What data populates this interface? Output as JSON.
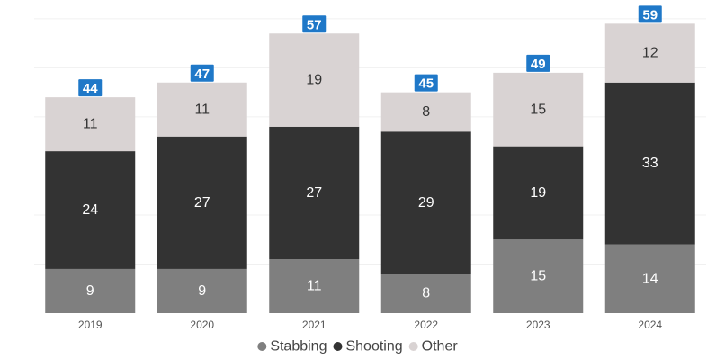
{
  "chart_data": {
    "type": "bar",
    "stacked": true,
    "categories": [
      "2019",
      "2020",
      "2021",
      "2022",
      "2023",
      "2024"
    ],
    "series": [
      {
        "name": "Stabbing",
        "values": [
          9,
          9,
          11,
          8,
          15,
          14
        ],
        "color": "#7f7f7f",
        "label_color": "#ffffff"
      },
      {
        "name": "Shooting",
        "values": [
          24,
          27,
          27,
          29,
          19,
          33
        ],
        "color": "#333333",
        "label_color": "#ffffff"
      },
      {
        "name": "Other",
        "values": [
          11,
          11,
          19,
          8,
          15,
          12
        ],
        "color": "#d9d3d3",
        "label_color": "#333333"
      }
    ],
    "totals": [
      44,
      47,
      57,
      45,
      49,
      59
    ],
    "total_badge_color": "#1f78c8",
    "ylim": [
      0,
      62
    ],
    "grid": true,
    "legend_position": "bottom-center",
    "title": "",
    "xlabel": "",
    "ylabel": ""
  }
}
